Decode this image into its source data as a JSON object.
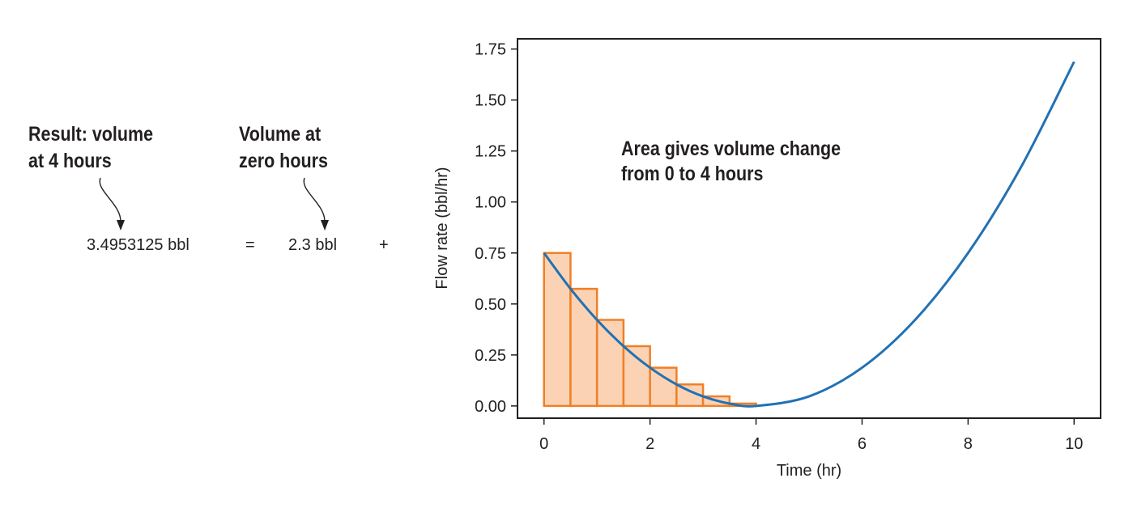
{
  "equation": {
    "result_label_line1": "Result: volume",
    "result_label_line2": "at 4 hours",
    "initial_label_line1": "Volume at",
    "initial_label_line2": "zero hours",
    "result_value": "3.4953125 bbl",
    "equals": "=",
    "initial_value": "2.3 bbl",
    "plus": "+"
  },
  "colors": {
    "curve": "#2271b3",
    "bar_fill": "#fbd3b4",
    "bar_stroke": "#f07f27",
    "text": "#231f20"
  },
  "chart_data": {
    "type": "line",
    "xlabel": "Time (hr)",
    "ylabel": "Flow rate (bbl/hr)",
    "xlim": [
      -0.5,
      10.5
    ],
    "ylim": [
      -0.06,
      1.8
    ],
    "x_ticks": [
      0,
      2,
      4,
      6,
      8,
      10
    ],
    "x_tick_labels": [
      "0",
      "2",
      "4",
      "6",
      "8",
      "10"
    ],
    "y_ticks": [
      0.0,
      0.25,
      0.5,
      0.75,
      1.0,
      1.25,
      1.5,
      1.75
    ],
    "y_tick_labels": [
      "0.00",
      "0.25",
      "0.50",
      "0.75",
      "1.00",
      "1.25",
      "1.50",
      "1.75"
    ],
    "annotation_line1": "Area gives volume change",
    "annotation_line2": "from 0 to 4 hours",
    "curve": {
      "formula": "0.046875*(t-4)^2",
      "x": [
        0,
        0.5,
        1,
        1.5,
        2,
        2.5,
        3,
        3.5,
        4,
        5,
        6,
        7,
        8,
        9,
        10
      ],
      "y": [
        0.75,
        0.5742,
        0.4219,
        0.293,
        0.1875,
        0.1055,
        0.0469,
        0.0117,
        0.0,
        0.0469,
        0.1875,
        0.4219,
        0.75,
        1.1719,
        1.6875
      ]
    },
    "bars": {
      "x_left": [
        0,
        0.5,
        1,
        1.5,
        2,
        2.5,
        3,
        3.5
      ],
      "width": 0.5,
      "heights": [
        0.75,
        0.5742,
        0.4219,
        0.293,
        0.1875,
        0.1055,
        0.0469,
        0.0117
      ]
    },
    "grid": false,
    "legend": "none"
  }
}
